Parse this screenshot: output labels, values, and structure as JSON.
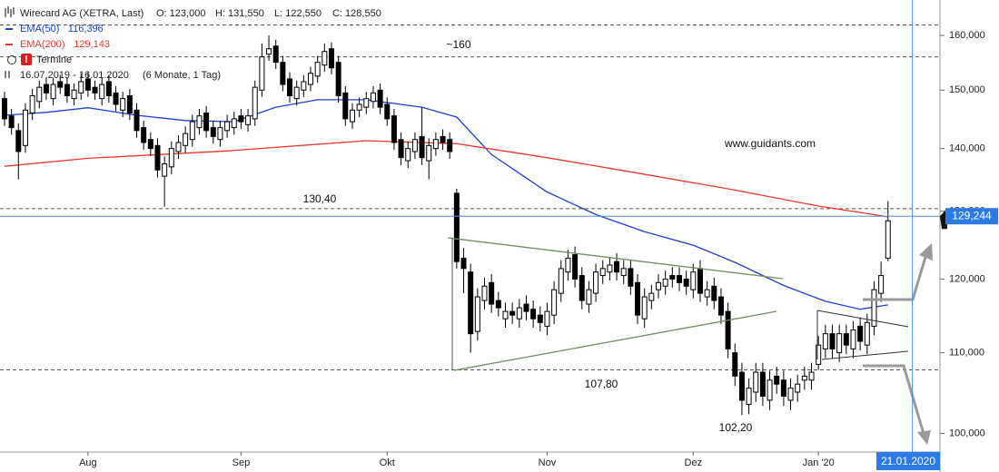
{
  "header": {
    "instrument": "Wirecard AG (XETRA, Last)",
    "quote": [
      "O: 123,000",
      "H: 131,550",
      "L: 122,550",
      "C: 128,550"
    ],
    "events": "Termine",
    "range": "16.07.2019 - 16.01.2020",
    "period": "(6 Monate, 1 Tag)"
  },
  "chart_data": {
    "type": "candlestick",
    "log_scale": true,
    "up_color": "#ffffff",
    "down_color": "#000000",
    "open": [
      148500,
      145500,
      143000,
      140500,
      146000,
      148000,
      151000,
      148500,
      151500,
      151000,
      148500,
      149500,
      152000,
      150500,
      148500,
      151500,
      149500,
      146500,
      149000,
      146500,
      143500,
      141500,
      140500,
      135500,
      137000,
      139500,
      140500,
      141500,
      143500,
      146000,
      143500,
      141500,
      143000,
      143500,
      145500,
      144000,
      145000,
      150000,
      156500,
      158000,
      155000,
      152000,
      148500,
      150000,
      151000,
      152500,
      154500,
      157500,
      155000,
      149500,
      144500,
      146500,
      147000,
      148000,
      150000,
      147500,
      145500,
      141500,
      138000,
      139500,
      142000,
      138000,
      140000,
      142000,
      141500,
      132800,
      123000,
      121000,
      112800,
      117000,
      119500,
      117000,
      114500,
      115500,
      114500,
      116500,
      115800,
      115000,
      113500,
      115000,
      118000,
      121000,
      123500,
      120500,
      116500,
      118000,
      120500,
      121000,
      122500,
      120500,
      121500,
      119500,
      114500,
      117000,
      118500,
      119000,
      120500,
      120500,
      120000,
      118500,
      121500,
      117500,
      119000,
      117500,
      115500,
      110000,
      107500,
      103500,
      105000,
      107500,
      104000,
      107000,
      106500,
      104000,
      105000,
      106500,
      106500,
      108500,
      110500,
      112500,
      110000,
      112500,
      110500,
      113500,
      111000,
      113500,
      118000,
      123000
    ],
    "high": [
      149700,
      146700,
      144200,
      147700,
      150200,
      151700,
      152200,
      152200,
      152700,
      152200,
      151200,
      153000,
      153200,
      151700,
      152200,
      152700,
      150700,
      149700,
      150200,
      147700,
      144700,
      142700,
      141700,
      138700,
      141200,
      142200,
      143700,
      145700,
      146700,
      147200,
      144700,
      144700,
      145700,
      146200,
      146700,
      146700,
      151700,
      158500,
      160000,
      159200,
      156200,
      153200,
      151700,
      152700,
      154200,
      156200,
      158500,
      158700,
      156200,
      150700,
      147700,
      148700,
      149700,
      150700,
      151200,
      148700,
      146700,
      142700,
      141200,
      142700,
      147000,
      141700,
      142700,
      143200,
      142700,
      133500,
      124500,
      122200,
      118700,
      120200,
      120700,
      118200,
      116700,
      116700,
      117200,
      117700,
      117000,
      116200,
      116700,
      119700,
      122700,
      124200,
      124700,
      121700,
      119700,
      122200,
      122700,
      123200,
      123700,
      122700,
      122700,
      120700,
      118700,
      119200,
      120700,
      121200,
      121700,
      121700,
      121200,
      122200,
      122700,
      119700,
      120200,
      118700,
      116700,
      111200,
      108700,
      106700,
      108700,
      108700,
      107700,
      108200,
      107700,
      106700,
      107200,
      108200,
      108700,
      112200,
      113700,
      113700,
      113700,
      113700,
      114200,
      114700,
      115200,
      119700,
      122500,
      131550
    ],
    "low": [
      143800,
      142300,
      135000,
      139300,
      144800,
      146800,
      148300,
      147300,
      149300,
      147800,
      147300,
      148300,
      148800,
      148300,
      147300,
      147800,
      146300,
      145300,
      144800,
      141800,
      139800,
      138800,
      135300,
      130700,
      135800,
      138300,
      139300,
      140300,
      142300,
      141800,
      140800,
      140300,
      141800,
      142300,
      143300,
      142800,
      143800,
      148800,
      155300,
      153800,
      149800,
      147800,
      147300,
      148800,
      149800,
      151300,
      153300,
      152800,
      147800,
      143800,
      143300,
      145300,
      145800,
      146800,
      145800,
      143800,
      139800,
      137300,
      136800,
      138300,
      137300,
      135000,
      138800,
      139800,
      138300,
      121500,
      118000,
      110000,
      111600,
      115800,
      115300,
      114800,
      113300,
      113800,
      113300,
      114300,
      113300,
      112800,
      112300,
      113800,
      116800,
      119800,
      118800,
      115800,
      115300,
      116800,
      119300,
      119800,
      119800,
      119300,
      117800,
      113800,
      113300,
      115800,
      117300,
      117800,
      118800,
      118300,
      117800,
      117300,
      116800,
      116300,
      115800,
      113800,
      109300,
      105800,
      102200,
      102300,
      103800,
      103300,
      102800,
      104800,
      103300,
      102800,
      103800,
      105300,
      105300,
      107800,
      109300,
      109300,
      108800,
      109800,
      109300,
      110300,
      109800,
      112300,
      116800,
      122550
    ],
    "close": [
      145000,
      143500,
      139500,
      146500,
      149000,
      150500,
      149500,
      151000,
      150500,
      149000,
      150000,
      151500,
      150000,
      149500,
      151000,
      149000,
      147500,
      148500,
      146000,
      143000,
      141000,
      140000,
      136500,
      137500,
      140000,
      141000,
      142500,
      144500,
      145500,
      143000,
      142000,
      143500,
      144500,
      145000,
      144500,
      145500,
      150500,
      156000,
      157500,
      155000,
      151000,
      149000,
      150500,
      151500,
      153000,
      155000,
      157000,
      154000,
      149000,
      145000,
      146500,
      147500,
      148500,
      149500,
      147000,
      145000,
      141000,
      138500,
      140000,
      141500,
      138500,
      140500,
      141500,
      141000,
      139500,
      122500,
      121500,
      112500,
      117500,
      119000,
      116500,
      116000,
      115500,
      115000,
      116000,
      115500,
      114500,
      114000,
      115500,
      118500,
      121500,
      123000,
      120000,
      117000,
      118500,
      121000,
      121500,
      122000,
      121000,
      121500,
      119000,
      115000,
      117500,
      118000,
      119500,
      120000,
      120000,
      119500,
      119000,
      121000,
      118000,
      118500,
      117000,
      115000,
      110500,
      107000,
      104000,
      105500,
      107500,
      104500,
      106500,
      106000,
      104500,
      105500,
      106000,
      107000,
      107500,
      111000,
      112500,
      110500,
      112500,
      111000,
      113000,
      111500,
      114000,
      118500,
      120500,
      128550
    ],
    "overlays": [
      {
        "name": "EMA(50)",
        "color": "#1f3fd9",
        "value_label": "116,396",
        "x": [
          0,
          6,
          12,
          19,
          26,
          33,
          39,
          45,
          52,
          60,
          65,
          70,
          78,
          85,
          92,
          99,
          105,
          112,
          118,
          123,
          127
        ],
        "values": [
          145600,
          146100,
          146900,
          145600,
          144700,
          144500,
          147000,
          148300,
          148300,
          147000,
          145300,
          139000,
          133000,
          129500,
          126900,
          124900,
          122400,
          119100,
          116900,
          115800,
          116396
        ]
      },
      {
        "name": "EMA(200)",
        "color": "#e8382c",
        "value_label": "129,143",
        "x": [
          0,
          12,
          32,
          52,
          65,
          78,
          91,
          104,
          117,
          127
        ],
        "values": [
          137100,
          138400,
          139600,
          141300,
          140800,
          138500,
          136000,
          133500,
          130800,
          129143
        ]
      }
    ],
    "levels": [
      162000,
      156000,
      130400,
      107800
    ],
    "last_price": {
      "value": 129244,
      "label": "129,244"
    },
    "cursor": {
      "value": 130.5,
      "label": "21.01.2020"
    },
    "annotations": [
      "~160",
      "130,40",
      "107,80",
      "102,20",
      "www.guidants.com"
    ],
    "xlim": [
      -0.65,
      134.47
    ],
    "xticks": [
      {
        "value": 12,
        "label": "Aug"
      },
      {
        "value": 34,
        "label": "Sep"
      },
      {
        "value": 55,
        "label": "Okt"
      },
      {
        "value": 78,
        "label": "Nov"
      },
      {
        "value": 99,
        "label": "Dez"
      },
      {
        "value": 117,
        "label": "Jan '20"
      }
    ],
    "ylim": [
      97830,
      166840
    ],
    "yticks": [
      {
        "value": 100000,
        "label": "100,000"
      },
      {
        "value": 110000,
        "label": "110,000"
      },
      {
        "value": 120000,
        "label": "120,000"
      },
      {
        "value": 130000,
        "label": "130,000"
      },
      {
        "value": 140000,
        "label": "140,000"
      },
      {
        "value": 150000,
        "label": "150,000"
      },
      {
        "value": 160000,
        "label": "160,000"
      }
    ]
  }
}
